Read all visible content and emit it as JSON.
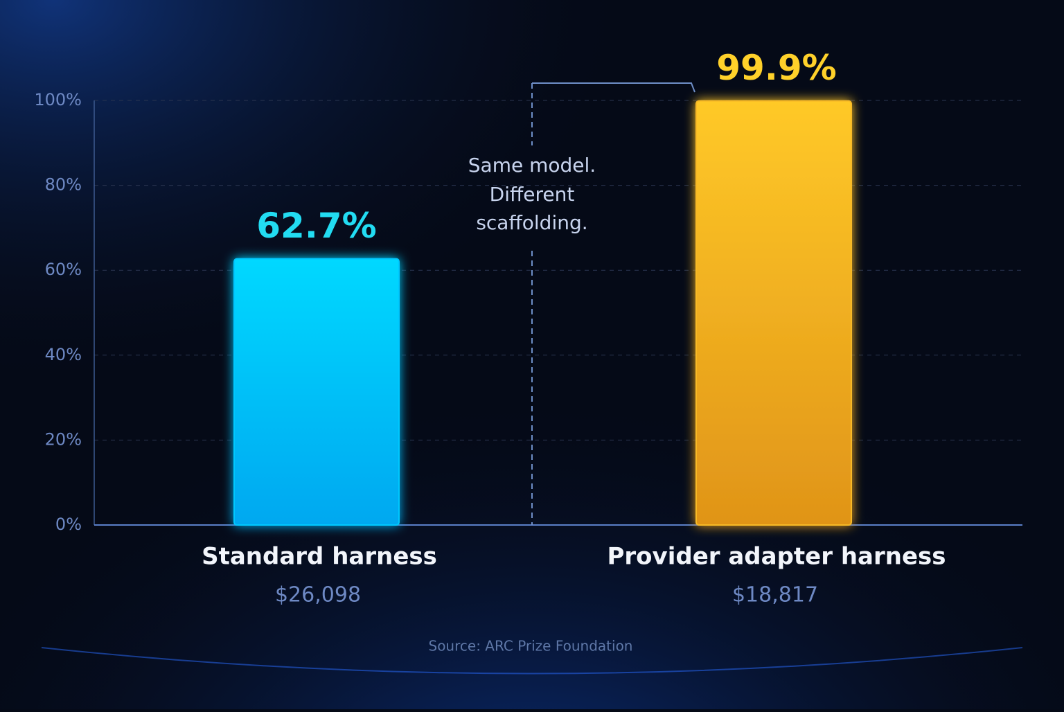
{
  "chart_data": {
    "type": "bar",
    "categories": [
      "Standard harness",
      "Provider adapter harness"
    ],
    "category_notes": [
      "$26,098",
      "$18,817"
    ],
    "values": [
      62.7,
      99.9
    ],
    "value_labels": [
      "62.7%",
      "99.9%"
    ],
    "colors": [
      "#00c8ff",
      "#f7b928"
    ],
    "ylim": [
      0,
      100
    ],
    "yticks": [
      {
        "value": 0,
        "label": "0%"
      },
      {
        "value": 20,
        "label": "20%"
      },
      {
        "value": 40,
        "label": "40%"
      },
      {
        "value": 60,
        "label": "60%"
      },
      {
        "value": 80,
        "label": "80%"
      },
      {
        "value": 100,
        "label": "100%"
      }
    ],
    "grid": true,
    "annotation": [
      "Same model.",
      "Different",
      "scaffolding."
    ],
    "source": "Source: ARC Prize Foundation"
  }
}
